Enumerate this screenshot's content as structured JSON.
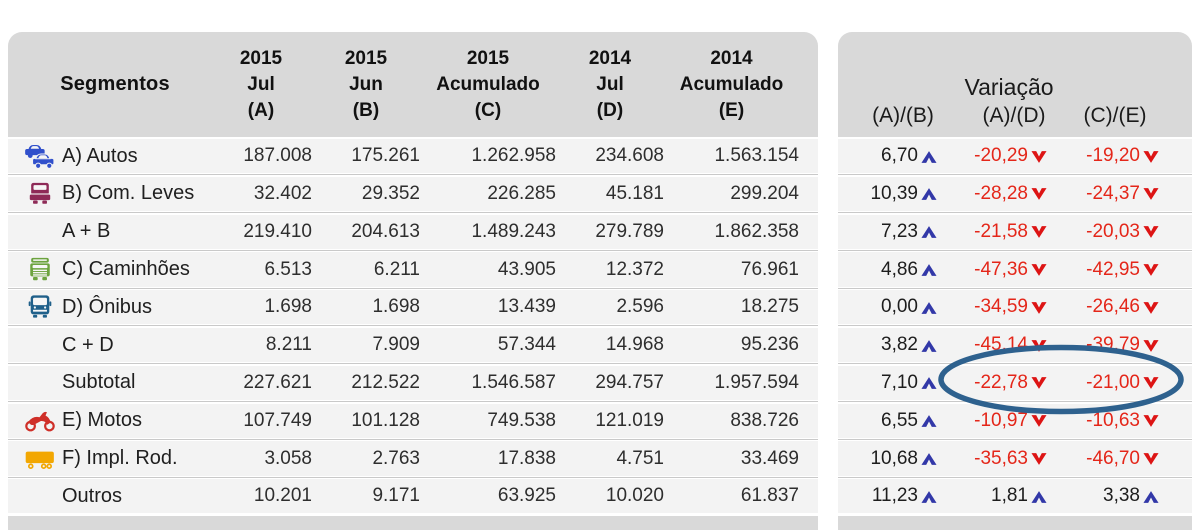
{
  "table": {
    "segments_label": "Segmentos",
    "value_columns": [
      {
        "year": "2015",
        "period": "Jul",
        "key": "(A)"
      },
      {
        "year": "2015",
        "period": "Jun",
        "key": "(B)"
      },
      {
        "year": "2015",
        "period": "Acumulado",
        "key": "(C)"
      },
      {
        "year": "2014",
        "period": "Jul",
        "key": "(D)"
      },
      {
        "year": "2014",
        "period": "Acumulado",
        "key": "(E)"
      }
    ]
  },
  "variation": {
    "title": "Variação",
    "ratio_columns": [
      "(A)/(B)",
      "(A)/(D)",
      "(C)/(E)"
    ]
  },
  "rows": [
    {
      "icon": "autos-icon",
      "label": "A) Autos",
      "values": [
        "187.008",
        "175.261",
        "1.262.958",
        "234.608",
        "1.563.154"
      ],
      "variations": [
        {
          "value": "6,70",
          "direction": "up"
        },
        {
          "value": "-20,29",
          "direction": "down"
        },
        {
          "value": "-19,20",
          "direction": "down"
        }
      ]
    },
    {
      "icon": "com-leves-icon",
      "label": "B) Com. Leves",
      "values": [
        "32.402",
        "29.352",
        "226.285",
        "45.181",
        "299.204"
      ],
      "variations": [
        {
          "value": "10,39",
          "direction": "up"
        },
        {
          "value": "-28,28",
          "direction": "down"
        },
        {
          "value": "-24,37",
          "direction": "down"
        }
      ]
    },
    {
      "icon": null,
      "label": "A + B",
      "values": [
        "219.410",
        "204.613",
        "1.489.243",
        "279.789",
        "1.862.358"
      ],
      "variations": [
        {
          "value": "7,23",
          "direction": "up"
        },
        {
          "value": "-21,58",
          "direction": "down"
        },
        {
          "value": "-20,03",
          "direction": "down"
        }
      ]
    },
    {
      "icon": "caminhoes-icon",
      "label": "C) Caminhões",
      "values": [
        "6.513",
        "6.211",
        "43.905",
        "12.372",
        "76.961"
      ],
      "variations": [
        {
          "value": "4,86",
          "direction": "up"
        },
        {
          "value": "-47,36",
          "direction": "down"
        },
        {
          "value": "-42,95",
          "direction": "down"
        }
      ]
    },
    {
      "icon": "onibus-icon",
      "label": "D) Ônibus",
      "values": [
        "1.698",
        "1.698",
        "13.439",
        "2.596",
        "18.275"
      ],
      "variations": [
        {
          "value": "0,00",
          "direction": "up"
        },
        {
          "value": "-34,59",
          "direction": "down"
        },
        {
          "value": "-26,46",
          "direction": "down"
        }
      ]
    },
    {
      "icon": null,
      "label": "C + D",
      "values": [
        "8.211",
        "7.909",
        "57.344",
        "14.968",
        "95.236"
      ],
      "variations": [
        {
          "value": "-45,14",
          "direction": "down"
        },
        {
          "value": "-39,79",
          "direction": "down"
        }
      ],
      "variation_ab": {
        "value": "3,82",
        "direction": "up"
      }
    },
    {
      "icon": null,
      "label": "Subtotal",
      "circled": true,
      "values": [
        "227.621",
        "212.522",
        "1.546.587",
        "294.757",
        "1.957.594"
      ],
      "variations": [
        {
          "value": "7,10",
          "direction": "up"
        },
        {
          "value": "-22,78",
          "direction": "down"
        },
        {
          "value": "-21,00",
          "direction": "down"
        }
      ]
    },
    {
      "icon": "motos-icon",
      "label": "E) Motos",
      "values": [
        "107.749",
        "101.128",
        "749.538",
        "121.019",
        "838.726"
      ],
      "variations": [
        {
          "value": "6,55",
          "direction": "up"
        },
        {
          "value": "-10,97",
          "direction": "down"
        },
        {
          "value": "-10,63",
          "direction": "down"
        }
      ]
    },
    {
      "icon": "impl-rod-icon",
      "label": "F) Impl. Rod.",
      "values": [
        "3.058",
        "2.763",
        "17.838",
        "4.751",
        "33.469"
      ],
      "variations": [
        {
          "value": "10,68",
          "direction": "up"
        },
        {
          "value": "-35,63",
          "direction": "down"
        },
        {
          "value": "-46,70",
          "direction": "down"
        }
      ]
    },
    {
      "icon": null,
      "label": "Outros",
      "values": [
        "10.201",
        "9.171",
        "63.925",
        "10.020",
        "61.837"
      ],
      "variations": [
        {
          "value": "11,23",
          "direction": "up"
        },
        {
          "value": "1,81",
          "direction": "up"
        },
        {
          "value": "3,38",
          "direction": "up"
        }
      ]
    }
  ],
  "annotation": {
    "type": "ellipse",
    "circled_row": "Subtotal",
    "circled_columns": [
      "(A)/(D)",
      "(C)/(E)"
    ],
    "circled_values": [
      "-22,78",
      "-21,00"
    ],
    "color": "#2e618e"
  },
  "colors": {
    "header_background": "#d9d9d9",
    "row_background": "#f3f3f3",
    "separator_line": "#c9c9c9",
    "positive_arrow": "#3238a8",
    "negative_arrow": "#dd1414",
    "negative_text": "#e42619",
    "ellipse": "#2e618e",
    "icon_autos": "#3150cb",
    "icon_com_leves": "#8e2a57",
    "icon_caminhoes": "#6ca33f",
    "icon_onibus": "#20608a",
    "icon_motos": "#cf2f28",
    "icon_impl_rod": "#f2a702"
  }
}
